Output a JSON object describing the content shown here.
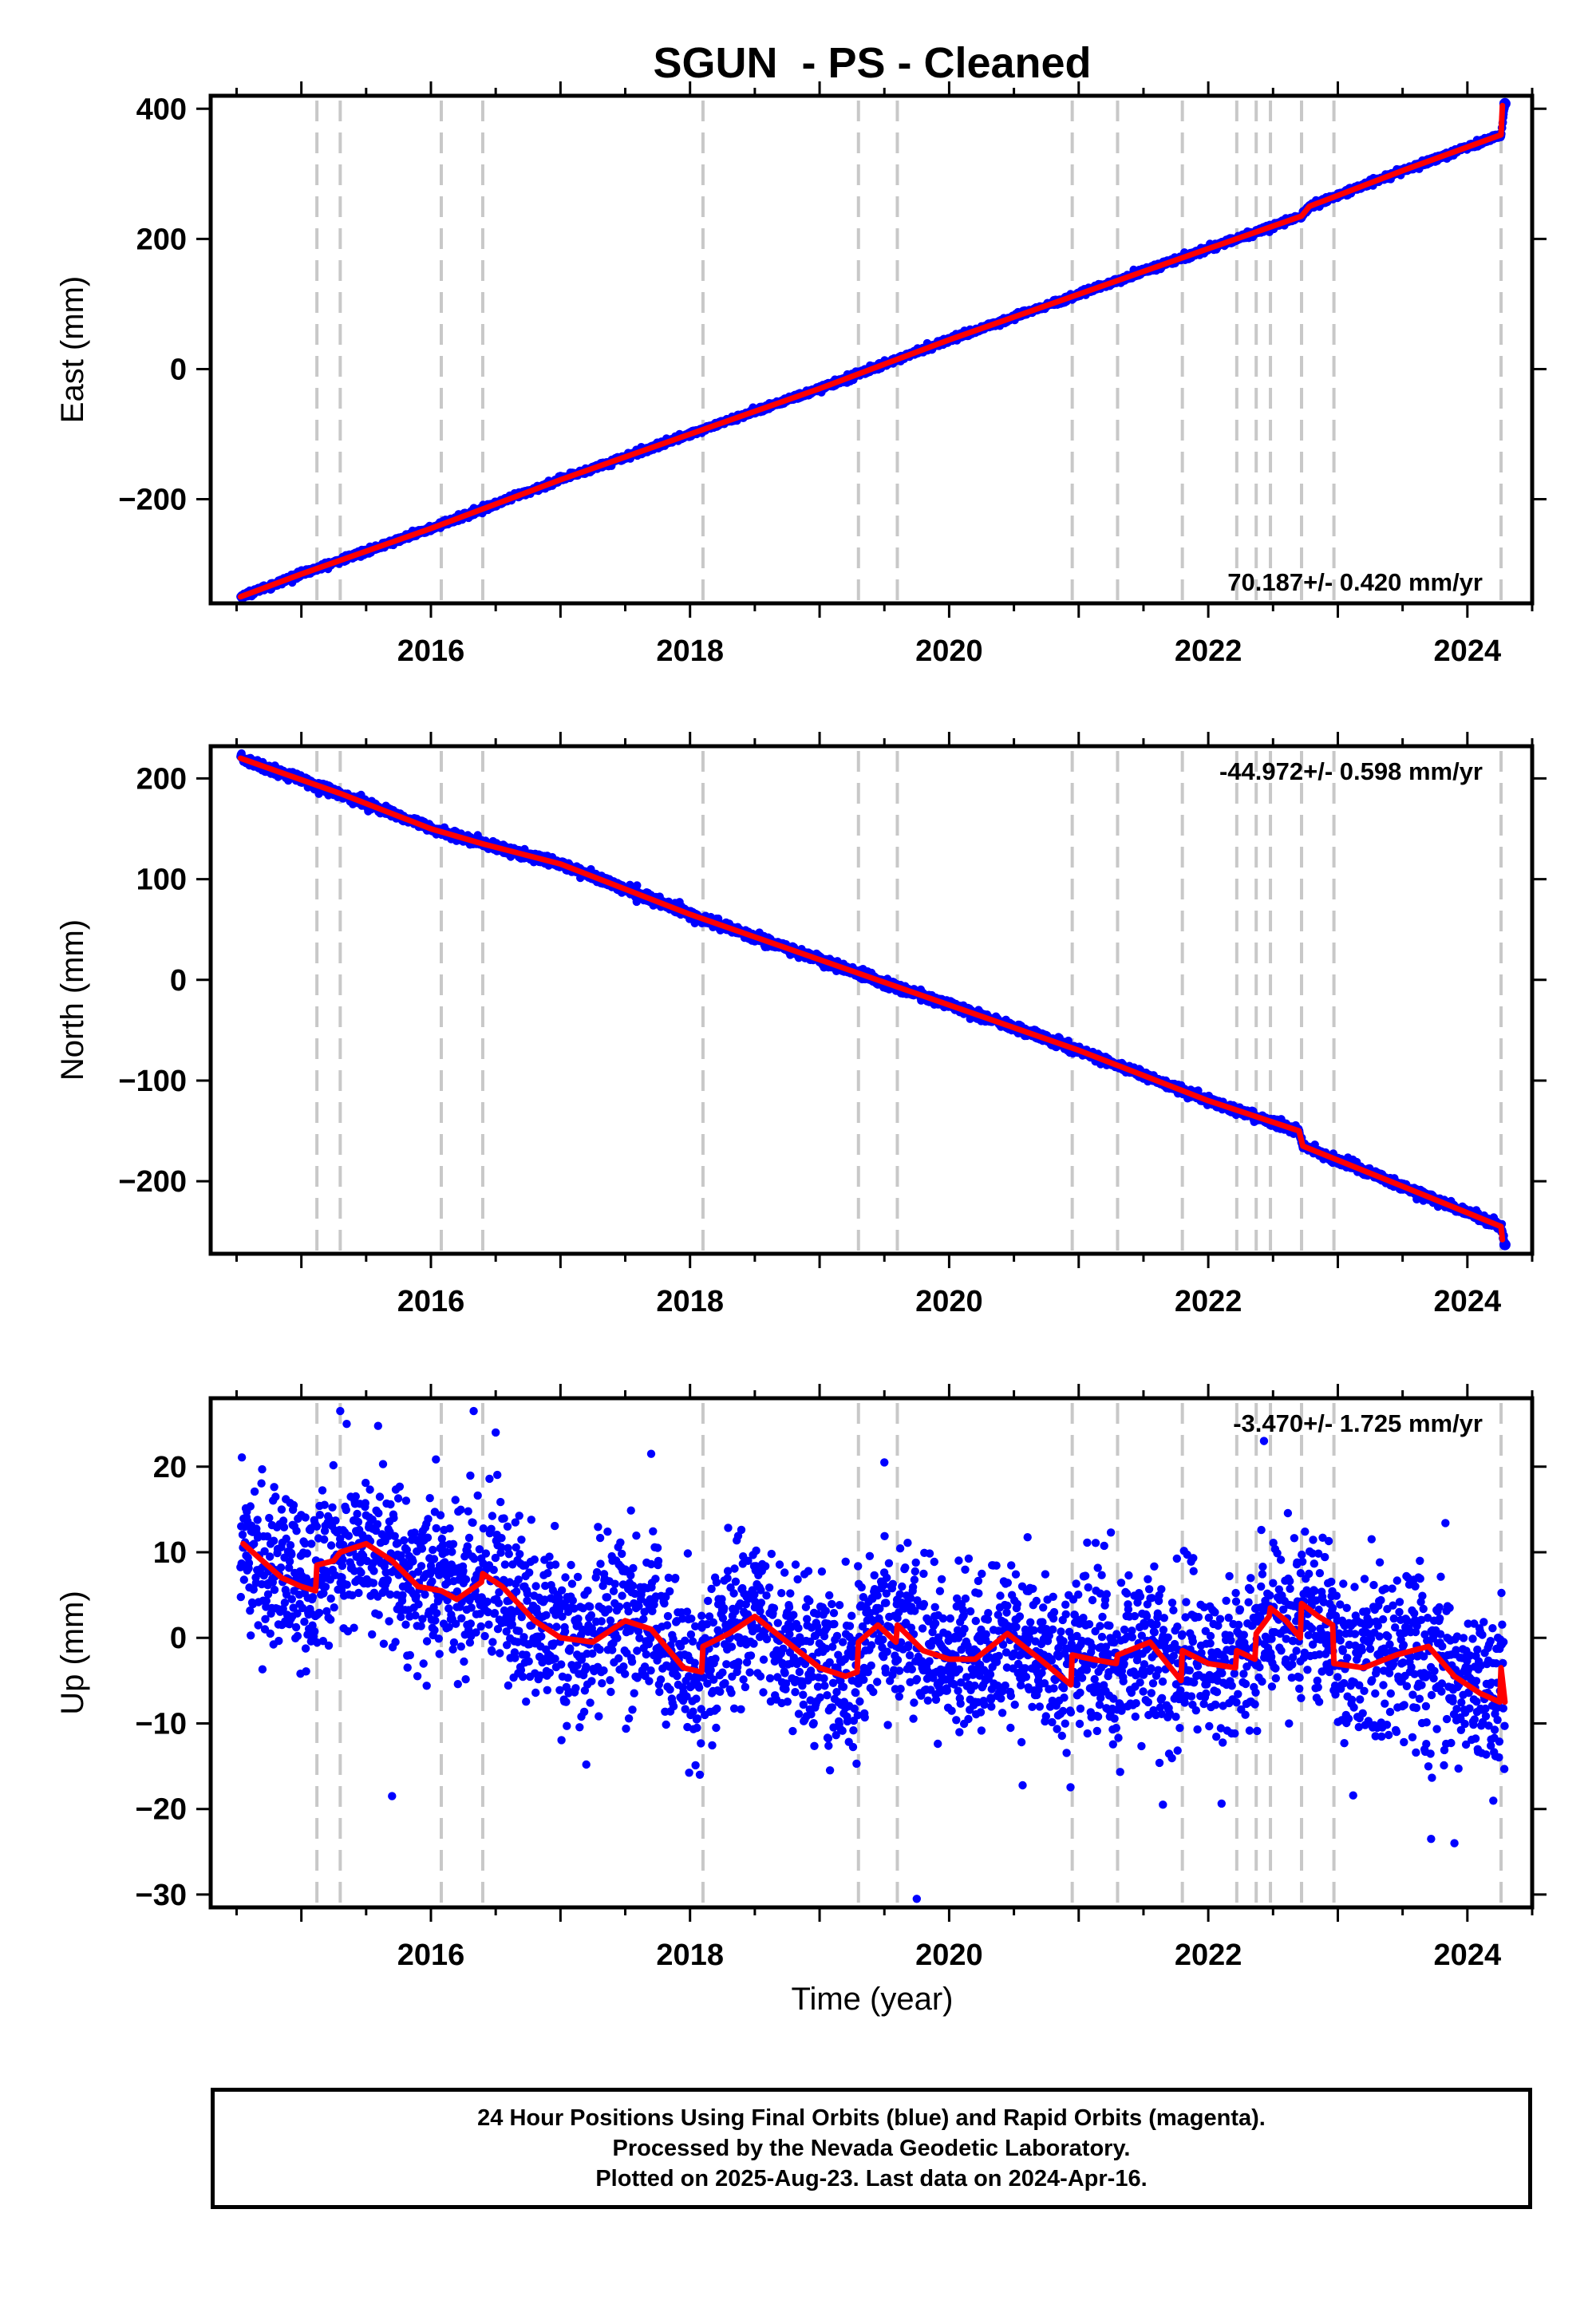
{
  "figure": {
    "title": "SGUN  - PS - Cleaned",
    "xlabel": "Time (year)",
    "footer": [
      "24 Hour Positions Using Final Orbits (blue) and Rapid Orbits (magenta).",
      "Processed by the Nevada Geodetic Laboratory.",
      "Plotted on 2025-Aug-23. Last data on 2024-Apr-16."
    ],
    "colors": {
      "data": "#0000ff",
      "model": "#ff0000",
      "steps": "#c8c8c8",
      "axes": "#000000"
    },
    "x_range": [
      2014.3,
      2024.5
    ],
    "x_ticks": [
      "2016",
      "2018",
      "2020",
      "2022",
      "2024"
    ],
    "step_epochs": [
      2015.12,
      2015.3,
      2016.08,
      2016.4,
      2018.1,
      2019.3,
      2019.6,
      2020.95,
      2021.3,
      2021.8,
      2022.22,
      2022.37,
      2022.48,
      2022.72,
      2022.97,
      2024.26
    ]
  },
  "chart_data": [
    {
      "type": "scatter",
      "component": "east",
      "ylabel": "East (mm)",
      "rate_label": "70.187+/- 0.420 mm/yr",
      "ylim": [
        -360,
        420
      ],
      "y_ticks": [
        "−200",
        "0",
        "200",
        "400"
      ],
      "time_span": [
        2014.53,
        2024.29
      ],
      "series": [
        {
          "name": "positions",
          "x": [
            2014.53,
            2015.0,
            2016.0,
            2017.0,
            2018.0,
            2019.0,
            2020.0,
            2021.0,
            2022.0,
            2022.72,
            2022.78,
            2023.5,
            2024.26,
            2024.29
          ],
          "y": [
            -350,
            -315,
            -245,
            -170,
            -100,
            -30,
            45,
            115,
            185,
            235,
            250,
            305,
            360,
            408
          ]
        },
        {
          "name": "model",
          "x": [
            2014.53,
            2015.0,
            2016.0,
            2017.0,
            2018.0,
            2019.0,
            2020.0,
            2021.0,
            2022.0,
            2022.72,
            2022.78,
            2023.5,
            2024.26,
            2024.27
          ],
          "y": [
            -350,
            -315,
            -245,
            -170,
            -100,
            -30,
            45,
            115,
            185,
            235,
            250,
            305,
            360,
            405
          ]
        }
      ]
    },
    {
      "type": "scatter",
      "component": "north",
      "ylabel": "North (mm)",
      "rate_label": "-44.972+/- 0.598 mm/yr",
      "ylim": [
        -272,
        232
      ],
      "y_ticks": [
        "−200",
        "−100",
        "0",
        "100",
        "200"
      ],
      "time_span": [
        2014.53,
        2024.29
      ],
      "series": [
        {
          "name": "positions",
          "x": [
            2014.53,
            2015.3,
            2016.0,
            2016.4,
            2017.0,
            2018.0,
            2019.0,
            2020.0,
            2021.0,
            2022.0,
            2022.7,
            2022.73,
            2023.5,
            2024.26,
            2024.29
          ],
          "y": [
            220,
            185,
            150,
            135,
            115,
            65,
            20,
            -25,
            -70,
            -120,
            -150,
            -165,
            -205,
            -245,
            -263
          ]
        },
        {
          "name": "model",
          "x": [
            2014.53,
            2015.3,
            2016.0,
            2016.4,
            2017.0,
            2018.0,
            2019.0,
            2020.0,
            2021.0,
            2022.0,
            2022.7,
            2022.73,
            2023.5,
            2024.26,
            2024.27
          ],
          "y": [
            220,
            185,
            150,
            135,
            115,
            65,
            20,
            -25,
            -70,
            -120,
            -150,
            -165,
            -205,
            -245,
            -258
          ]
        }
      ]
    },
    {
      "type": "scatter",
      "component": "up",
      "ylabel": "Up (mm)",
      "rate_label": "-3.470+/- 1.725 mm/yr",
      "ylim": [
        -31.5,
        28
      ],
      "y_ticks": [
        "−30",
        "−20",
        "−10",
        "0",
        "10",
        "20"
      ],
      "time_span": [
        2014.53,
        2024.29
      ],
      "scatter_sd": 4.8,
      "outliers": {
        "x": [
          2015.3,
          2015.35,
          2016.33,
          2016.5,
          2019.75,
          2022.43,
          2017.7,
          2015.7,
          2021.65,
          2023.9,
          2023.72,
          2019.5
        ],
        "y": [
          26.5,
          25,
          26.5,
          24,
          -30.5,
          23,
          21.5,
          -18.5,
          -19.5,
          -24,
          -23.5,
          20.5
        ]
      },
      "series": [
        {
          "name": "model",
          "x": [
            2014.55,
            2014.7,
            2014.85,
            2015.0,
            2015.11,
            2015.12,
            2015.25,
            2015.3,
            2015.5,
            2015.7,
            2015.9,
            2016.08,
            2016.2,
            2016.39,
            2016.4,
            2016.55,
            2016.8,
            2017.0,
            2017.25,
            2017.5,
            2017.7,
            2017.95,
            2018.09,
            2018.1,
            2018.3,
            2018.5,
            2018.75,
            2019.0,
            2019.2,
            2019.29,
            2019.3,
            2019.45,
            2019.59,
            2019.6,
            2019.8,
            2020.0,
            2020.2,
            2020.45,
            2020.7,
            2020.94,
            2020.95,
            2021.1,
            2021.29,
            2021.3,
            2021.55,
            2021.79,
            2021.8,
            2022.0,
            2022.21,
            2022.22,
            2022.36,
            2022.37,
            2022.47,
            2022.48,
            2022.6,
            2022.71,
            2022.72,
            2022.85,
            2022.96,
            2022.97,
            2023.2,
            2023.45,
            2023.7,
            2023.9,
            2024.1,
            2024.25,
            2024.26,
            2024.29
          ],
          "y": [
            11,
            9,
            7,
            6,
            5.5,
            8.5,
            9,
            10,
            11,
            9,
            6,
            5.5,
            4.5,
            6.5,
            7.5,
            6,
            2,
            0,
            -0.5,
            2,
            1,
            -3.5,
            -4,
            -1,
            0.5,
            2.5,
            -0.5,
            -3.5,
            -4.5,
            -4,
            -0.5,
            1.5,
            -0.5,
            1.5,
            -1.5,
            -2.5,
            -2.5,
            0.5,
            -2.5,
            -5.5,
            -2,
            -2.5,
            -3,
            -2,
            -0.5,
            -5,
            -1.5,
            -3,
            -3.5,
            -1.5,
            -2.5,
            0.5,
            2.5,
            3.5,
            2,
            0,
            4,
            2.5,
            1.5,
            -3,
            -3.5,
            -2,
            -1,
            -4.5,
            -6.5,
            -7.5,
            -3.5,
            -7.5
          ]
        }
      ]
    }
  ]
}
